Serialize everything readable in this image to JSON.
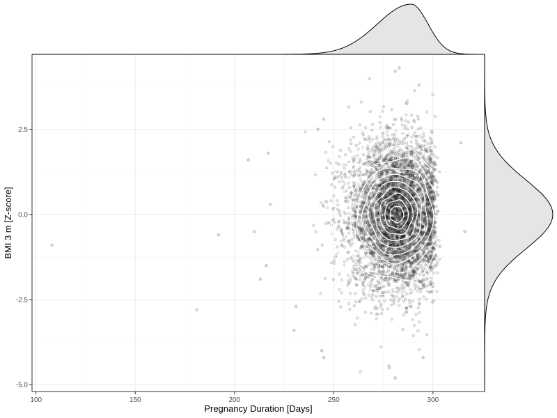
{
  "chart_data": {
    "type": "scatter",
    "title": "",
    "xlabel": "Pregnancy Duration [Days]",
    "ylabel": "BMI 3 m [Z-score]",
    "xlim": [
      98,
      326
    ],
    "ylim": [
      -5.2,
      4.7
    ],
    "x_ticks": [
      100,
      150,
      200,
      250,
      300
    ],
    "x_tick_labels": [
      "100",
      "150",
      "200",
      "250",
      "300"
    ],
    "y_ticks": [
      -5.0,
      -2.5,
      0.0,
      2.5
    ],
    "y_tick_labels": [
      "-5.0",
      "-2.5",
      "0.0",
      "2.5"
    ],
    "grid": true,
    "legend": "none",
    "point_color": "#000000",
    "contour_color": "#ffffff",
    "marginal_fill": "#e5e5e5",
    "bulk_distribution": {
      "x_mean": 282,
      "x_sd": 12,
      "y_mean": 0.0,
      "y_sd": 1.0,
      "n_points": 5000
    },
    "contour_levels": [
      {
        "x_half_width": 33,
        "y_half_height": 2.4
      },
      {
        "x_half_width": 27,
        "y_half_height": 1.95
      },
      {
        "x_half_width": 23,
        "y_half_height": 1.65
      },
      {
        "x_half_width": 19.5,
        "y_half_height": 1.4
      },
      {
        "x_half_width": 16.5,
        "y_half_height": 1.18
      },
      {
        "x_half_width": 13.5,
        "y_half_height": 0.97
      },
      {
        "x_half_width": 11,
        "y_half_height": 0.78
      },
      {
        "x_half_width": 8.5,
        "y_half_height": 0.6
      },
      {
        "x_half_width": 6,
        "y_half_height": 0.42
      },
      {
        "x_half_width": 3.5,
        "y_half_height": 0.24
      }
    ],
    "outliers": [
      {
        "x": 108,
        "y": -0.9
      },
      {
        "x": 181,
        "y": -2.8
      },
      {
        "x": 192,
        "y": -0.6
      },
      {
        "x": 207,
        "y": 1.6
      },
      {
        "x": 217,
        "y": 1.8
      },
      {
        "x": 210,
        "y": -0.5
      },
      {
        "x": 213,
        "y": -1.9
      },
      {
        "x": 216,
        "y": -1.5
      },
      {
        "x": 218,
        "y": 0.3
      },
      {
        "x": 230,
        "y": -3.4
      },
      {
        "x": 231,
        "y": -2.7
      },
      {
        "x": 244,
        "y": -4.0
      },
      {
        "x": 245,
        "y": -4.2
      },
      {
        "x": 242,
        "y": 2.5
      },
      {
        "x": 245,
        "y": 2.8
      },
      {
        "x": 278,
        "y": -4.5
      },
      {
        "x": 281,
        "y": -4.8
      },
      {
        "x": 281,
        "y": 4.2
      },
      {
        "x": 283,
        "y": 4.3
      },
      {
        "x": 295,
        "y": -4.2
      },
      {
        "x": 293,
        "y": 3.8
      },
      {
        "x": 314,
        "y": 2.1
      },
      {
        "x": 316,
        "y": -0.5
      }
    ],
    "marginal_x": {
      "mode": 289,
      "description": "density of pregnancy duration"
    },
    "marginal_y": {
      "mode": 0.0,
      "description": "density of BMI z-score"
    }
  }
}
